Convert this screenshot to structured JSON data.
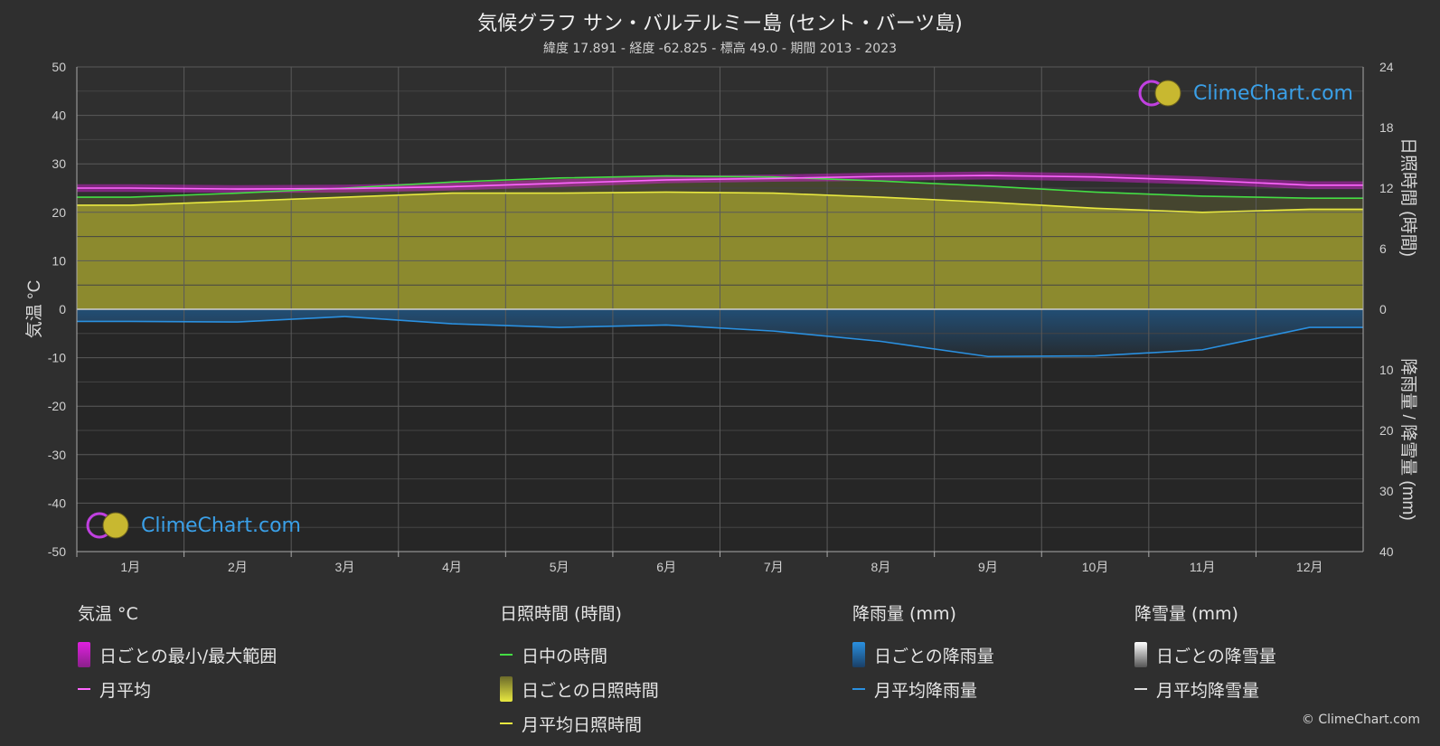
{
  "title": "気候グラフ サン・バルテルミー島 (セント・バーツ島)",
  "subtitle": "緯度 17.891 - 経度 -62.825 - 標高 49.0 - 期間 2013 - 2023",
  "logo_text": "ClimeChart.com",
  "copyright": "© ClimeChart.com",
  "colors": {
    "background": "#2f2f2f",
    "temperature_range": "#e020e0",
    "temperature_mean": "#ff66ff",
    "daylight": "#44dd44",
    "sunshine_fill": "#9c9a2e",
    "sunshine_mean": "#e8e840",
    "rain_fill": "#1f6fb5",
    "rain_mean": "#2a90e0",
    "snow_mean": "#dddddd"
  },
  "legend": {
    "temperature": {
      "heading": "気温 °C",
      "items": [
        "日ごとの最小/最大範囲",
        "月平均"
      ]
    },
    "sunshine": {
      "heading": "日照時間 (時間)",
      "items": [
        "日中の時間",
        "日ごとの日照時間",
        "月平均日照時間"
      ]
    },
    "rain": {
      "heading": "降雨量 (mm)",
      "items": [
        "日ごとの降雨量",
        "月平均降雨量"
      ]
    },
    "snow": {
      "heading": "降雪量 (mm)",
      "items": [
        "日ごとの降雪量",
        "月平均降雪量"
      ]
    }
  },
  "chart_data": {
    "type": "line",
    "categories": [
      "1月",
      "2月",
      "3月",
      "4月",
      "5月",
      "6月",
      "7月",
      "8月",
      "9月",
      "10月",
      "11月",
      "12月"
    ],
    "ylabel_left": "気温 °C",
    "ylabel_right_top": "日照時間 (時間)",
    "ylabel_right_bottom": "降雨量 / 降雪量 (mm)",
    "ylim_left": [
      -50,
      50
    ],
    "left_ticks": [
      50,
      40,
      30,
      20,
      10,
      0,
      -10,
      -20,
      -30,
      -40,
      -50
    ],
    "right_top_ticks": [
      24,
      18,
      12,
      6,
      0
    ],
    "right_top_range": [
      0,
      24
    ],
    "right_bottom_ticks": [
      0,
      10,
      20,
      30,
      40
    ],
    "right_bottom_range": [
      0,
      40
    ],
    "grid": true,
    "series": [
      {
        "name": "月平均",
        "axis": "temperature",
        "values": [
          25.0,
          24.8,
          24.9,
          25.3,
          26.0,
          26.7,
          27.0,
          27.4,
          27.6,
          27.3,
          26.6,
          25.6
        ]
      },
      {
        "name": "日中の時間",
        "axis": "sunshine_hours",
        "values": [
          11.1,
          11.5,
          12.0,
          12.6,
          13.0,
          13.2,
          13.1,
          12.7,
          12.2,
          11.6,
          11.2,
          11.0
        ]
      },
      {
        "name": "月平均日照時間",
        "axis": "sunshine_hours",
        "values": [
          10.3,
          10.7,
          11.1,
          11.5,
          11.5,
          11.6,
          11.5,
          11.1,
          10.6,
          10.0,
          9.6,
          9.9
        ]
      },
      {
        "name": "月平均降雨量",
        "axis": "precipitation_mm",
        "values": [
          2.0,
          2.1,
          1.2,
          2.4,
          3.0,
          2.6,
          3.6,
          5.3,
          7.8,
          7.7,
          6.7,
          3.0
        ]
      },
      {
        "name": "月平均降雪量",
        "axis": "precipitation_mm",
        "values": [
          0,
          0,
          0,
          0,
          0,
          0,
          0,
          0,
          0,
          0,
          0,
          0
        ]
      }
    ],
    "temperature_daily_range": {
      "min": [
        24.2,
        24.0,
        24.1,
        24.5,
        25.2,
        26.0,
        26.3,
        26.5,
        26.8,
        26.4,
        25.7,
        24.8
      ],
      "max": [
        25.8,
        25.6,
        25.7,
        26.1,
        26.8,
        27.5,
        27.8,
        28.2,
        28.4,
        28.1,
        27.4,
        26.4
      ]
    }
  }
}
